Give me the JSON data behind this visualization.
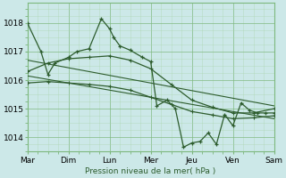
{
  "xlabel": "Pression niveau de la mer( hPa )",
  "bg_color": "#cce8e8",
  "grid_color_major": "#7db87d",
  "grid_color_minor": "#aad4aa",
  "line_color": "#2d5c2d",
  "xlim": [
    0,
    6
  ],
  "ylim": [
    1013.5,
    1018.7
  ],
  "yticks": [
    1014,
    1015,
    1016,
    1017,
    1018
  ],
  "xtick_labels": [
    "Mar",
    "Dim",
    "Lun",
    "Mer",
    "Jeu",
    "Ven",
    "Sam"
  ],
  "xtick_positions": [
    0,
    1,
    2,
    3,
    4,
    5,
    6
  ],
  "series1_x": [
    0.0,
    0.33,
    0.5,
    0.67,
    1.0,
    1.2,
    1.5,
    1.8,
    2.0,
    2.1,
    2.25,
    2.5,
    2.8,
    3.0,
    3.15,
    3.4,
    3.6,
    3.8,
    4.0,
    4.2,
    4.4,
    4.6,
    4.8,
    5.0,
    5.2,
    5.4,
    5.6,
    5.8,
    6.0
  ],
  "series1_y": [
    1018.0,
    1017.0,
    1016.2,
    1016.6,
    1016.8,
    1017.0,
    1017.1,
    1018.15,
    1017.8,
    1017.5,
    1017.2,
    1017.05,
    1016.8,
    1016.65,
    1015.1,
    1015.3,
    1015.0,
    1013.65,
    1013.8,
    1013.85,
    1014.15,
    1013.75,
    1014.8,
    1014.4,
    1015.2,
    1014.95,
    1014.85,
    1014.85,
    1014.85
  ],
  "series2_x": [
    0.0,
    0.5,
    1.0,
    1.5,
    2.0,
    2.5,
    3.0,
    3.5,
    4.0,
    4.5,
    5.0,
    5.5,
    6.0
  ],
  "series2_y": [
    1016.3,
    1016.6,
    1016.75,
    1016.8,
    1016.85,
    1016.7,
    1016.4,
    1015.85,
    1015.3,
    1015.05,
    1014.85,
    1014.85,
    1015.0
  ],
  "series3_x": [
    0.0,
    0.5,
    1.0,
    1.5,
    2.0,
    2.5,
    3.0,
    3.5,
    4.0,
    4.5,
    5.0,
    5.5,
    6.0
  ],
  "series3_y": [
    1015.9,
    1015.95,
    1015.9,
    1015.85,
    1015.78,
    1015.65,
    1015.4,
    1015.15,
    1014.9,
    1014.78,
    1014.65,
    1014.68,
    1014.75
  ],
  "trend1_x": [
    0,
    6
  ],
  "trend1_y": [
    1016.7,
    1015.1
  ],
  "trend2_x": [
    0,
    6
  ],
  "trend2_y": [
    1016.15,
    1014.65
  ]
}
